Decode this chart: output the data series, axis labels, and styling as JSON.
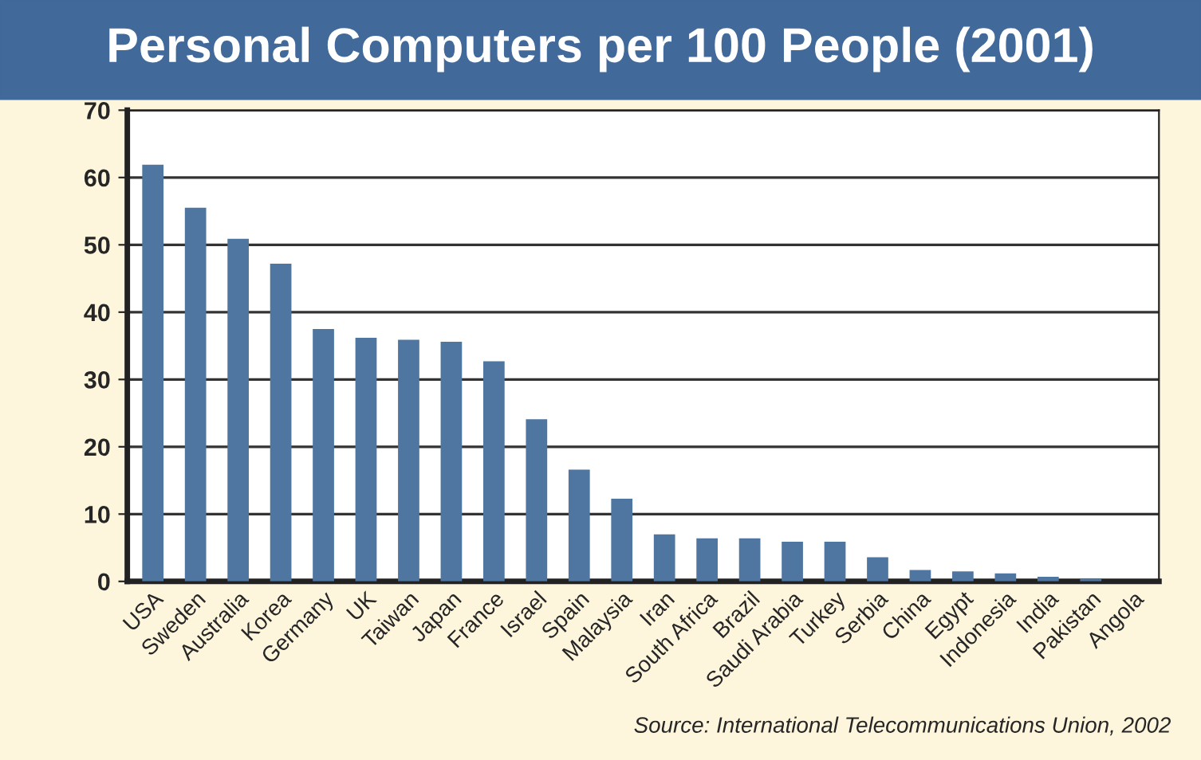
{
  "chart_data": {
    "type": "bar",
    "title": "Personal Computers per 100 People (2001)",
    "categories": [
      "USA",
      "Sweden",
      "Australia",
      "Korea",
      "Germany",
      "UK",
      "Taiwan",
      "Japan",
      "France",
      "Israel",
      "Spain",
      "Malaysia",
      "Iran",
      "South Africa",
      "Brazil",
      "Saudi Arabia",
      "Turkey",
      "Serbia",
      "China",
      "Egypt",
      "Indonesia",
      "India",
      "Pakistan",
      "Angola"
    ],
    "values": [
      61.9,
      55.5,
      50.9,
      47.2,
      37.5,
      36.2,
      35.9,
      35.6,
      32.7,
      24.1,
      16.6,
      12.3,
      7.0,
      6.4,
      6.4,
      5.9,
      5.9,
      3.6,
      1.7,
      1.5,
      1.2,
      0.7,
      0.4,
      null
    ],
    "color": "#4f76a0",
    "ylim": [
      0,
      70
    ],
    "yticks": [
      0,
      10,
      20,
      30,
      40,
      50,
      60,
      70
    ],
    "grid": "y",
    "annotations": [
      "Source: International Telecommunications Union, 2002"
    ]
  }
}
